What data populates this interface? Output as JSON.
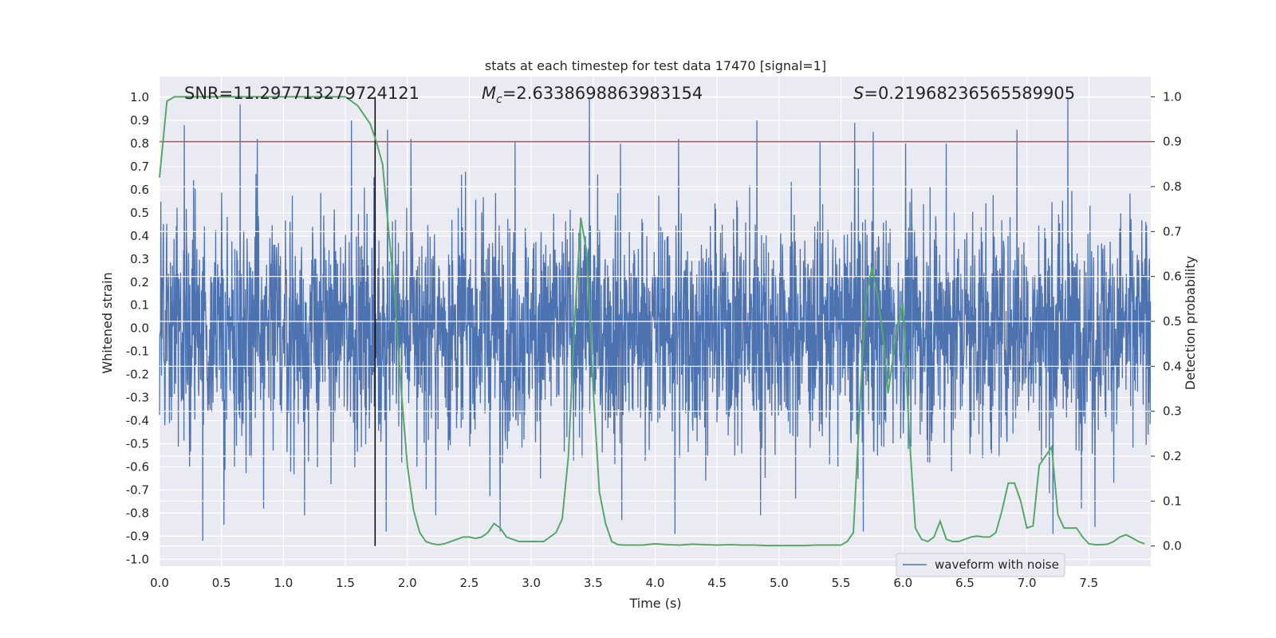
{
  "chart_data": {
    "type": "line",
    "title": "stats at each timestep for test data 17470 [signal=1]",
    "xlabel": "Time (s)",
    "ylabel_left": "Whitened strain",
    "ylabel_right": "Detection probability",
    "xlim": [
      0,
      8
    ],
    "ylim_left": [
      -1.03,
      1.09
    ],
    "ylim_right": [
      -0.045,
      1.045
    ],
    "x_ticks": [
      "0.0",
      "0.5",
      "1.0",
      "1.5",
      "2.0",
      "2.5",
      "3.0",
      "3.5",
      "4.0",
      "4.5",
      "5.0",
      "5.5",
      "6.0",
      "6.5",
      "7.0",
      "7.5"
    ],
    "y_left_ticks": [
      "-1.0",
      "-0.9",
      "-0.8",
      "-0.7",
      "-0.6",
      "-0.5",
      "-0.4",
      "-0.3",
      "-0.2",
      "-0.1",
      "0.0",
      "0.1",
      "0.2",
      "0.3",
      "0.4",
      "0.5",
      "0.6",
      "0.7",
      "0.8",
      "0.9",
      "1.0"
    ],
    "y_right_ticks": [
      "0.0",
      "0.1",
      "0.2",
      "0.3",
      "0.4",
      "0.5",
      "0.6",
      "0.7",
      "0.8",
      "0.9",
      "1.0"
    ],
    "grid": true,
    "legend": {
      "location": "lower-right",
      "entries": [
        "waveform with noise"
      ]
    },
    "annotations": {
      "snr": "SNR=11.297713279724121",
      "mc_symbol": "M",
      "mc_sub": "c",
      "mc_value": "=2.6338698863983154",
      "s_symbol": "S",
      "s_value": "=0.21968236565589905"
    },
    "threshold": {
      "value": 0.9,
      "axis": "right"
    },
    "merger_time": 1.74,
    "waveform": {
      "name": "waveform with noise",
      "duration_s": 8,
      "typical_amplitude": 0.3,
      "spike_peaks": [
        [
          0.2,
          0.88
        ],
        [
          0.65,
          0.97
        ],
        [
          0.79,
          0.82
        ],
        [
          1.55,
          0.9
        ],
        [
          1.84,
          0.86
        ],
        [
          2.03,
          0.82
        ],
        [
          2.87,
          0.81
        ],
        [
          3.47,
          1.0
        ],
        [
          3.72,
          0.8
        ],
        [
          4.19,
          0.82
        ],
        [
          4.82,
          0.9
        ],
        [
          5.33,
          0.81
        ],
        [
          5.61,
          0.89
        ],
        [
          5.76,
          0.85
        ],
        [
          6.02,
          0.8
        ],
        [
          6.35,
          0.8
        ],
        [
          6.92,
          0.86
        ],
        [
          7.33,
          1.0
        ],
        [
          0.35,
          -0.92
        ],
        [
          0.52,
          -0.85
        ],
        [
          0.84,
          -0.78
        ],
        [
          1.17,
          -0.81
        ],
        [
          1.83,
          -0.88
        ],
        [
          2.23,
          -0.81
        ],
        [
          2.75,
          -0.88
        ],
        [
          3.73,
          -0.83
        ],
        [
          4.16,
          -0.89
        ],
        [
          4.85,
          -0.81
        ],
        [
          5.68,
          -0.88
        ],
        [
          7.21,
          -0.89
        ],
        [
          7.55,
          -0.86
        ]
      ],
      "color": "#4c72b0"
    },
    "detection_probability": {
      "color": "#55a868",
      "x": [
        0.0,
        0.06,
        0.12,
        0.18,
        0.24,
        0.3,
        0.4,
        0.5,
        0.6,
        0.7,
        0.8,
        0.9,
        1.0,
        1.1,
        1.2,
        1.3,
        1.4,
        1.5,
        1.55,
        1.6,
        1.65,
        1.7,
        1.75,
        1.8,
        1.85,
        1.9,
        1.95,
        2.0,
        2.05,
        2.1,
        2.15,
        2.2,
        2.25,
        2.3,
        2.35,
        2.4,
        2.45,
        2.5,
        2.55,
        2.6,
        2.65,
        2.7,
        2.75,
        2.8,
        2.85,
        2.9,
        2.95,
        3.0,
        3.05,
        3.1,
        3.15,
        3.2,
        3.25,
        3.3,
        3.35,
        3.4,
        3.45,
        3.5,
        3.55,
        3.6,
        3.65,
        3.7,
        3.75,
        3.8,
        3.9,
        4.0,
        4.1,
        4.2,
        4.3,
        4.4,
        4.5,
        4.6,
        4.7,
        4.8,
        4.9,
        5.0,
        5.1,
        5.2,
        5.3,
        5.4,
        5.5,
        5.55,
        5.6,
        5.65,
        5.7,
        5.75,
        5.8,
        5.85,
        5.88,
        5.95,
        6.0,
        6.05,
        6.1,
        6.15,
        6.2,
        6.25,
        6.3,
        6.35,
        6.4,
        6.45,
        6.5,
        6.55,
        6.6,
        6.65,
        6.7,
        6.75,
        6.8,
        6.85,
        6.9,
        6.95,
        7.0,
        7.05,
        7.1,
        7.15,
        7.2,
        7.25,
        7.3,
        7.35,
        7.4,
        7.45,
        7.5,
        7.55,
        7.6,
        7.65,
        7.7,
        7.75,
        7.8,
        7.85,
        7.9,
        7.95
      ],
      "y": [
        0.82,
        0.99,
        1.0,
        1.0,
        1.0,
        1.0,
        1.0,
        1.0,
        1.0,
        1.0,
        1.0,
        1.0,
        1.0,
        1.0,
        1.0,
        1.0,
        1.0,
        1.0,
        0.99,
        0.98,
        0.96,
        0.94,
        0.9,
        0.85,
        0.7,
        0.55,
        0.35,
        0.18,
        0.08,
        0.03,
        0.01,
        0.005,
        0.003,
        0.005,
        0.01,
        0.015,
        0.02,
        0.02,
        0.017,
        0.02,
        0.03,
        0.05,
        0.04,
        0.02,
        0.015,
        0.01,
        0.01,
        0.01,
        0.01,
        0.01,
        0.02,
        0.03,
        0.06,
        0.2,
        0.5,
        0.73,
        0.65,
        0.35,
        0.12,
        0.05,
        0.01,
        0.003,
        0.002,
        0.002,
        0.002,
        0.005,
        0.003,
        0.002,
        0.004,
        0.003,
        0.002,
        0.003,
        0.002,
        0.002,
        0.001,
        0.001,
        0.001,
        0.001,
        0.002,
        0.002,
        0.002,
        0.01,
        0.03,
        0.3,
        0.55,
        0.62,
        0.55,
        0.44,
        0.34,
        0.48,
        0.54,
        0.25,
        0.04,
        0.015,
        0.01,
        0.02,
        0.055,
        0.015,
        0.01,
        0.01,
        0.015,
        0.02,
        0.022,
        0.02,
        0.02,
        0.03,
        0.08,
        0.14,
        0.14,
        0.1,
        0.04,
        0.045,
        0.18,
        0.2,
        0.22,
        0.07,
        0.04,
        0.04,
        0.04,
        0.02,
        0.005,
        0.003,
        0.003,
        0.004,
        0.01,
        0.02,
        0.025,
        0.018,
        0.01,
        0.005
      ]
    }
  }
}
